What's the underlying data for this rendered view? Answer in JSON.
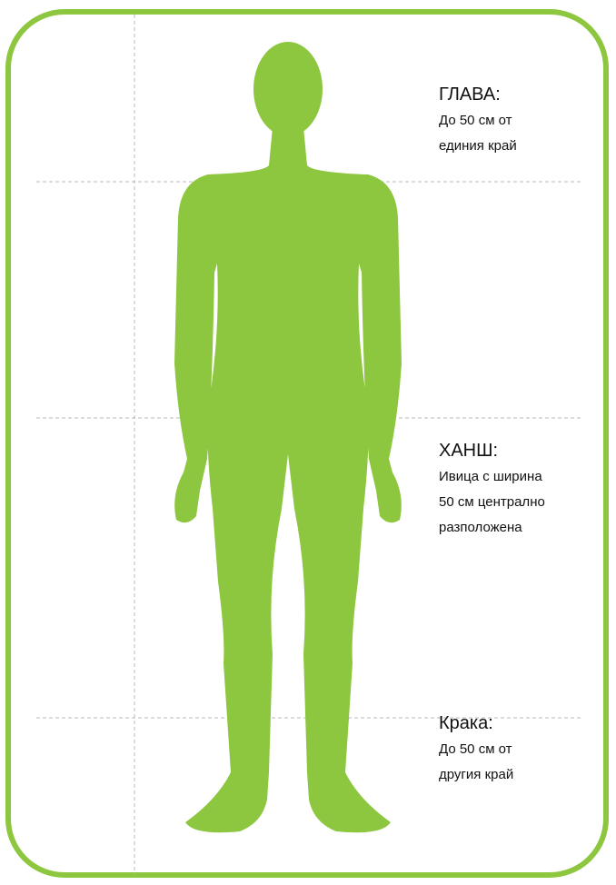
{
  "sections": [
    {
      "title": "ГЛАВА:",
      "lines": [
        "До 50 см от",
        "единия край"
      ]
    },
    {
      "title": "ХАНШ:",
      "lines": [
        "Ивица с ширина",
        "50 см централно",
        "разположена"
      ]
    },
    {
      "title": "Крака:",
      "lines": [
        "До 50 см от",
        "другия край"
      ]
    }
  ]
}
